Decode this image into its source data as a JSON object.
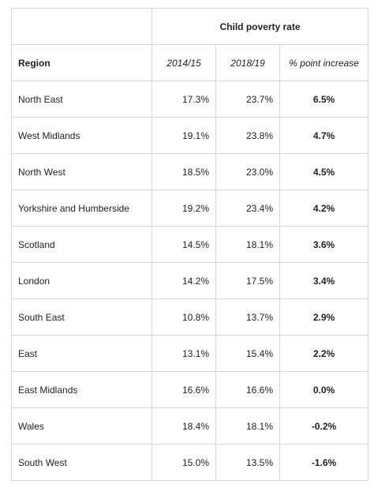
{
  "table": {
    "group_header": "Child poverty rate",
    "columns": {
      "region": "Region",
      "year1": "2014/15",
      "year2": "2018/19",
      "increase": "% point increase"
    },
    "rows": [
      {
        "region": "North East",
        "year1": "17.3%",
        "year2": "23.7%",
        "increase": "6.5%"
      },
      {
        "region": "West Midlands",
        "year1": "19.1%",
        "year2": "23.8%",
        "increase": "4.7%"
      },
      {
        "region": "North West",
        "year1": "18.5%",
        "year2": "23.0%",
        "increase": "4.5%"
      },
      {
        "region": "Yorkshire and Humberside",
        "year1": "19.2%",
        "year2": "23.4%",
        "increase": "4.2%"
      },
      {
        "region": "Scotland",
        "year1": "14.5%",
        "year2": "18.1%",
        "increase": "3.6%"
      },
      {
        "region": "London",
        "year1": "14.2%",
        "year2": "17.5%",
        "increase": "3.4%"
      },
      {
        "region": "South East",
        "year1": "10.8%",
        "year2": "13.7%",
        "increase": "2.9%"
      },
      {
        "region": "East",
        "year1": "13.1%",
        "year2": "15.4%",
        "increase": "2.2%"
      },
      {
        "region": "East Midlands",
        "year1": "16.6%",
        "year2": "16.6%",
        "increase": "0.0%"
      },
      {
        "region": "Wales",
        "year1": "18.4%",
        "year2": "18.1%",
        "increase": "-0.2%"
      },
      {
        "region": "South West",
        "year1": "15.0%",
        "year2": "13.5%",
        "increase": "-1.6%"
      }
    ]
  }
}
